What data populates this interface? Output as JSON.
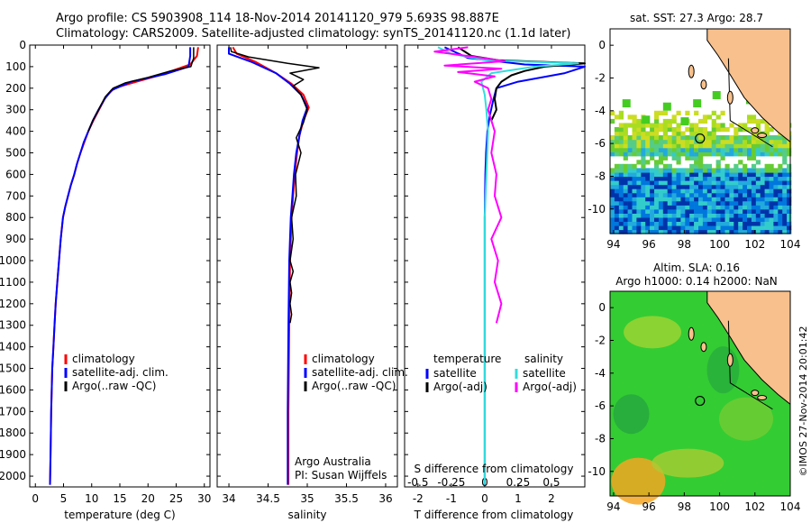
{
  "header": {
    "line1": "Argo profile: CS 5903908_114 18-Nov-2014 20141120_979 5.693S 98.887E",
    "line2": "Climatology: CARS2009. Satellite-adjusted climatology: synTS_20141120.nc (1.1d later)"
  },
  "colors": {
    "climatology": "#ff0000",
    "satellite": "#0000ff",
    "argo": "#000000",
    "salinity_satellite": "#33dddd",
    "salinity_argo": "#ff00ff",
    "land": "#f7c08c"
  },
  "chart_data": [
    {
      "type": "line",
      "ylim": [
        2050,
        0
      ],
      "yticks": [
        "0",
        "100",
        "200",
        "300",
        "400",
        "500",
        "600",
        "700",
        "800",
        "900",
        "1000",
        "1100",
        "1200",
        "1300",
        "1400",
        "1500",
        "1600",
        "1700",
        "1800",
        "1900",
        "2000"
      ],
      "xlabel": "temperature (deg C)",
      "xlim": [
        -1,
        31
      ],
      "xticks": [
        "0",
        "5",
        "10",
        "15",
        "20",
        "25",
        "30"
      ],
      "legend": [
        "climatology",
        "satellite-adj. clim.",
        "Argo(..raw -QC)"
      ],
      "series": [
        {
          "name": "climatology",
          "x": [
            28.9,
            28.7,
            27.5,
            22,
            18,
            14,
            12.5,
            11.3,
            10.3,
            9.4,
            8.7,
            8.0,
            7.4,
            6.9,
            6.3,
            5.8,
            5.3,
            4.9,
            4.5,
            4.2,
            3.9,
            3.6,
            3.4,
            3.2,
            3.0,
            2.8,
            2.7,
            2.6
          ],
          "y": [
            10,
            50,
            90,
            140,
            170,
            200,
            240,
            300,
            350,
            400,
            450,
            500,
            550,
            600,
            650,
            700,
            750,
            800,
            900,
            1000,
            1100,
            1200,
            1300,
            1400,
            1500,
            1700,
            1900,
            2040
          ]
        },
        {
          "name": "satellite-adj. clim.",
          "x": [
            27.5,
            27.5,
            27.2,
            23,
            17,
            13.5,
            12.3,
            11.2,
            10.2,
            9.4,
            8.6,
            8.0,
            7.4,
            6.9,
            6.3,
            5.8,
            5.3,
            4.9,
            4.5,
            4.2,
            3.9,
            3.6,
            3.4,
            3.2,
            3.0,
            2.8,
            2.7,
            2.6
          ],
          "y": [
            10,
            50,
            100,
            135,
            170,
            210,
            250,
            300,
            350,
            400,
            450,
            500,
            550,
            600,
            650,
            700,
            750,
            800,
            900,
            1000,
            1100,
            1200,
            1300,
            1400,
            1500,
            1700,
            1900,
            2040
          ]
        },
        {
          "name": "Argo(..raw -QC)",
          "x": [
            28.1,
            28.1,
            27.6,
            24,
            20,
            16,
            13.8,
            12.4,
            11.2,
            10.2,
            9.4
          ],
          "y": [
            10,
            60,
            100,
            120,
            150,
            175,
            200,
            240,
            300,
            350,
            400
          ]
        }
      ]
    },
    {
      "type": "line",
      "ylim": [
        2050,
        0
      ],
      "xlabel": "salinity",
      "xlim": [
        33.85,
        36.15
      ],
      "xticks": [
        "34",
        "34.5",
        "35",
        "35.5",
        "36"
      ],
      "legend": [
        "climatology",
        "satellite-adj. clim.",
        "Argo(..raw -QC)"
      ],
      "annotations": [
        "Argo Australia",
        "PI: Susan Wijffels"
      ],
      "series": [
        {
          "name": "climatology",
          "x": [
            34.05,
            34.1,
            34.35,
            34.6,
            34.8,
            34.95,
            35.02,
            34.95,
            34.9,
            34.87,
            34.84,
            34.82,
            34.8,
            34.78,
            34.77,
            34.76,
            34.76
          ],
          "y": [
            10,
            40,
            80,
            130,
            180,
            230,
            290,
            350,
            420,
            500,
            600,
            700,
            800,
            1000,
            1300,
            1700,
            2040
          ]
        },
        {
          "name": "satellite-adj. clim.",
          "x": [
            34.0,
            34.0,
            34.3,
            34.6,
            34.78,
            34.92,
            35.0,
            34.94,
            34.9,
            34.86,
            34.83,
            34.81,
            34.79,
            34.77,
            34.76,
            34.75,
            34.75
          ],
          "y": [
            10,
            40,
            80,
            130,
            180,
            230,
            290,
            350,
            420,
            500,
            600,
            700,
            800,
            1000,
            1300,
            1700,
            2040
          ]
        },
        {
          "name": "Argo(..raw -QC)",
          "x": [
            34.02,
            34.03,
            34.25,
            34.75,
            35.15,
            34.78,
            34.95,
            34.82,
            34.92,
            35.0,
            34.95,
            34.86,
            34.92,
            34.85,
            34.86,
            34.8,
            34.82,
            34.78,
            34.82,
            34.78,
            34.8,
            34.78,
            34.8,
            34.78
          ],
          "y": [
            10,
            30,
            55,
            85,
            105,
            130,
            160,
            190,
            230,
            300,
            360,
            430,
            500,
            600,
            700,
            800,
            900,
            1000,
            1050,
            1100,
            1150,
            1200,
            1250,
            1290
          ]
        }
      ]
    },
    {
      "type": "line",
      "ylim": [
        2050,
        0
      ],
      "xlabel": "T difference from climatology",
      "xlim": [
        -2.4,
        3.0
      ],
      "xticks": [
        "-2",
        "-1",
        "0",
        "1",
        "2"
      ],
      "x2label": "S difference from climatology",
      "x2ticks": [
        "-0.5",
        "-0.25",
        "0",
        "0.25",
        "0.5"
      ],
      "legend_titles": [
        "temperature",
        "salinity"
      ],
      "legend": [
        "satellite",
        "Argo(-adj)",
        "satellite",
        "Argo(-adj)"
      ],
      "series": [
        {
          "name": "satellite",
          "x": [
            -1.2,
            -0.5,
            1.2,
            3.0,
            2.4,
            1.0,
            0.35,
            0.25,
            0.15,
            0.08,
            0.04,
            0.02,
            0.0,
            0.0,
            0.0
          ],
          "y": [
            10,
            60,
            90,
            100,
            130,
            170,
            200,
            260,
            330,
            400,
            500,
            600,
            800,
            1200,
            2040
          ]
        },
        {
          "name": "Argo(-adj)",
          "x": [
            -0.8,
            -0.4,
            0.4,
            3.0,
            1.8,
            1.2,
            0.8,
            0.5,
            0.35,
            0.3,
            0.35,
            0.2
          ],
          "y": [
            10,
            50,
            70,
            85,
            100,
            120,
            140,
            170,
            200,
            250,
            300,
            350
          ]
        },
        {
          "name": "satellite",
          "x": [
            -1.4,
            -1.0,
            0.0,
            2.8,
            1.5,
            0.2,
            -0.1,
            0.0,
            0.05,
            0.1,
            0.05,
            0.0,
            0.0,
            0.0,
            0.0,
            0.0
          ],
          "y": [
            10,
            40,
            70,
            85,
            100,
            130,
            170,
            230,
            300,
            400,
            600,
            800,
            1000,
            1400,
            1800,
            2040
          ]
        },
        {
          "name": "Argo(-adj)",
          "x": [
            -0.5,
            -1.5,
            -0.3,
            0.6,
            -1.2,
            0.5,
            -0.8,
            0.3,
            -0.3,
            0.1,
            0.2,
            0.1,
            0.3,
            0.2,
            0.35,
            0.3,
            0.5,
            0.2,
            0.4,
            0.3,
            0.5,
            0.35
          ],
          "y": [
            10,
            30,
            55,
            75,
            95,
            110,
            125,
            145,
            170,
            200,
            250,
            300,
            400,
            500,
            600,
            700,
            800,
            900,
            1000,
            1100,
            1200,
            1290
          ]
        }
      ]
    },
    {
      "type": "heatmap",
      "title": "sat. SST: 27.3  Argo: 28.7",
      "xlim": [
        93.8,
        104
      ],
      "ylim": [
        -11.5,
        1
      ],
      "xticks": [
        "94",
        "96",
        "98",
        "100",
        "102",
        "104"
      ],
      "yticks": [
        "0",
        "-2",
        "-4",
        "-6",
        "-8",
        "-10"
      ],
      "argo_position": [
        98.887,
        -5.693
      ]
    },
    {
      "type": "heatmap",
      "title": "Altim. SLA: 0.16",
      "subtitle": "Argo h1000: 0.14  h2000: NaN",
      "xlim": [
        93.8,
        104
      ],
      "ylim": [
        -11.5,
        1
      ],
      "xticks": [
        "94",
        "96",
        "98",
        "100",
        "102",
        "104"
      ],
      "yticks": [
        "0",
        "-2",
        "-4",
        "-6",
        "-8",
        "-10"
      ],
      "argo_position": [
        98.887,
        -5.693
      ]
    }
  ],
  "credit": "©IMOS 27-Nov-2014 20:01:42"
}
